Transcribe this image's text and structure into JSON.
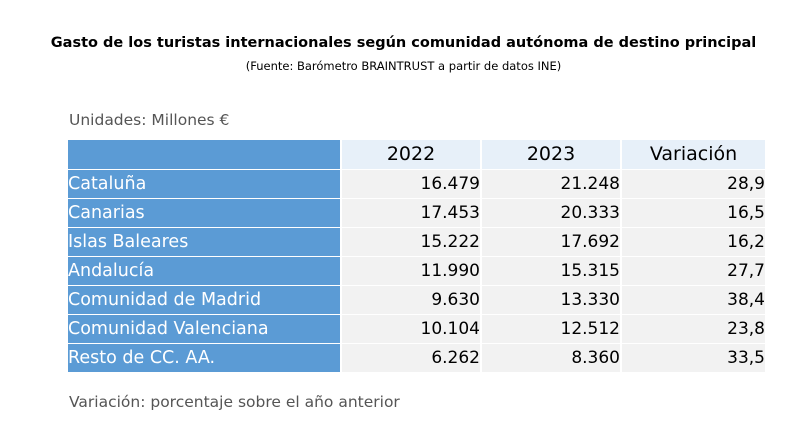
{
  "title": "Gasto de los turistas internacionales según comunidad autónoma de destino principal",
  "subtitle": "(Fuente: Barómetro BRAINTRUST a partir de datos INE)",
  "units_note": "Unidades: Millones €",
  "footer_note": "Variación: porcentaje sobre el año anterior",
  "chart_data": {
    "type": "table",
    "title": "Gasto de los turistas internacionales según comunidad autónoma de destino principal",
    "columns": [
      "",
      "2022",
      "2023",
      "Variación"
    ],
    "rows": [
      {
        "name": "Cataluña",
        "v2022": "16.479",
        "v2023": "21.248",
        "var": "28,9"
      },
      {
        "name": "Canarias",
        "v2022": "17.453",
        "v2023": "20.333",
        "var": "16,5"
      },
      {
        "name": "Islas Baleares",
        "v2022": "15.222",
        "v2023": "17.692",
        "var": "16,2"
      },
      {
        "name": "Andalucía",
        "v2022": "11.990",
        "v2023": "15.315",
        "var": "27,7"
      },
      {
        "name": "Comunidad de Madrid",
        "v2022": "9.630",
        "v2023": "13.330",
        "var": "38,4"
      },
      {
        "name": "Comunidad Valenciana",
        "v2022": "10.104",
        "v2023": "12.512",
        "var": "23,8"
      },
      {
        "name": "Resto de CC. AA.",
        "v2022": "6.262",
        "v2023": "8.360",
        "var": "33,5"
      }
    ],
    "colors": {
      "row_header": "#5b9bd5",
      "column_header": "#e7f0f9",
      "cell": "#f2f2f2"
    }
  }
}
